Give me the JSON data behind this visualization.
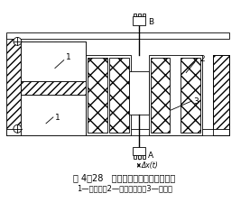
{
  "title_line1": "图 4－28   差动变压器式加速度传感器",
  "title_line2": "1—悬臂架；2—差动变压器；3—衔铁。",
  "bg_color": "#ffffff",
  "line_color": "#000000",
  "label_B": "B",
  "label_A": "A",
  "label_dx": "Δx(t)",
  "label_1a": "1",
  "label_1b": "1",
  "label_2": "2",
  "label_3": "3"
}
